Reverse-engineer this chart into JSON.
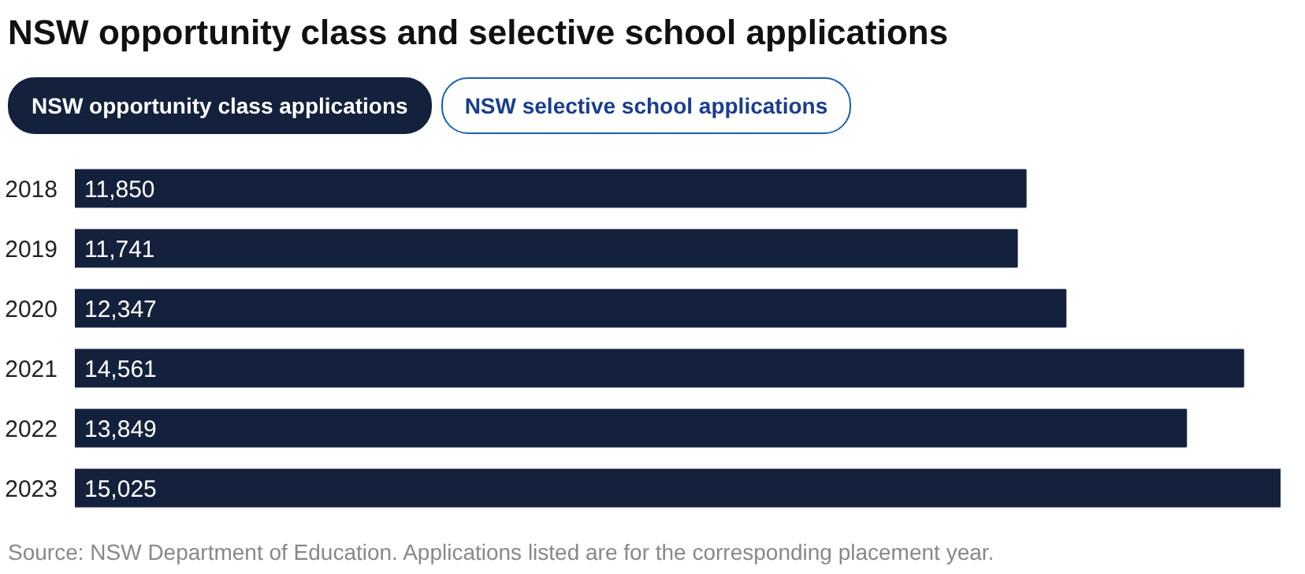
{
  "chart_data": {
    "type": "bar",
    "orientation": "horizontal",
    "title": "NSW opportunity class and selective school applications",
    "categories": [
      "2018",
      "2019",
      "2020",
      "2021",
      "2022",
      "2023"
    ],
    "series": [
      {
        "name": "NSW opportunity class applications",
        "color": "#14213d",
        "values": [
          11850,
          11741,
          12347,
          14561,
          13849,
          15025
        ],
        "value_labels": [
          "11,850",
          "11,741",
          "12,347",
          "14,561",
          "13,849",
          "15,025"
        ]
      }
    ],
    "tick_labels": "y",
    "grid": false,
    "annotations": [
      "NSW selective school applications",
      "Source: NSW Department of Education. Applications listed are for the corresponding placement year."
    ]
  }
}
